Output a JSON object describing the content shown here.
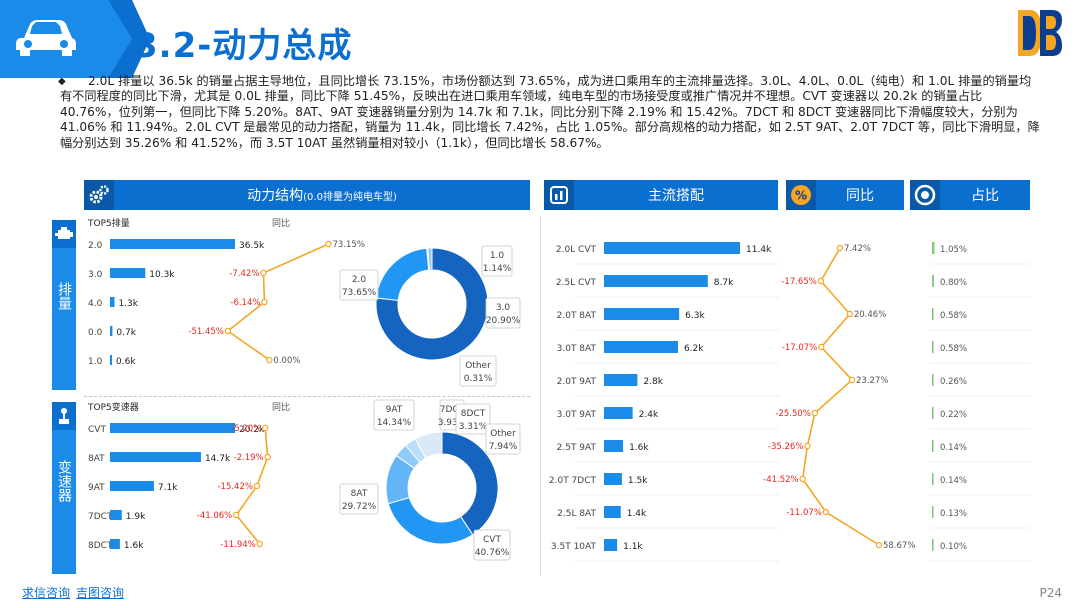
{
  "header": {
    "title": "3.2-动力总成"
  },
  "intro": {
    "text": "2.0L 排量以 36.5k 的销量占据主导地位，且同比增长 73.15%，市场份额达到 73.65%，成为进口乘用车的主流排量选择。3.0L、4.0L、0.0L（纯电）和 1.0L 排量的销量均有不同程度的同比下滑，尤其是 0.0L 排量，同比下降 51.45%，反映出在进口乘用车领域，纯电车型的市场接受度或推广情况并不理想。CVT 变速器以 20.2k 的销量占比 40.76%，位列第一，但同比下降 5.20%。8AT、9AT 变速器销量分别为 14.7k 和 7.1k，同比分别下降 2.19% 和 15.42%。7DCT 和 8DCT 变速器同比下滑幅度较大，分别为 41.06% 和 11.94%。2.0L CVT 是最常见的动力搭配，销量为 11.4k，同比增长 7.42%，占比 1.05%。部分高规格的动力搭配，如 2.5T 9AT、2.0T 7DCT 等，同比下滑明显，降幅分别达到 35.26% 和 41.52%，而 3.5T 10AT 虽然销量相对较小（1.1k），但同比增长 58.67%。",
    "bullet": "◆"
  },
  "sections": {
    "powertrain": {
      "title": "动力结构",
      "note": "(0.0排量为纯电车型)"
    },
    "combo": {
      "title": "主流搭配"
    },
    "yoy": {
      "title": "同比"
    },
    "share": {
      "title": "占比"
    }
  },
  "side_tags": {
    "displacement": "排量",
    "transmission": "变速器"
  },
  "chart_data": [
    {
      "id": "displacement",
      "type": "bar",
      "title": "TOP5排量",
      "yoy_label": "同比",
      "categories": [
        "2.0",
        "3.0",
        "4.0",
        "0.0",
        "1.0"
      ],
      "values": [
        36.5,
        10.3,
        1.3,
        0.7,
        0.6
      ],
      "value_labels": [
        "36.5k",
        "10.3k",
        "1.3k",
        "0.7k",
        "0.6k"
      ],
      "yoy": [
        73.15,
        -7.42,
        -6.14,
        -51.45,
        0.0
      ],
      "yoy_labels": [
        "73.15%",
        "-7.42%",
        "-6.14%",
        "-51.45%",
        "0.00%"
      ]
    },
    {
      "id": "displacement_share",
      "type": "pie",
      "slices": [
        {
          "label": "2.0",
          "value": 73.65,
          "value_label": "73.65%"
        },
        {
          "label": "3.0",
          "value": 20.9,
          "value_label": "20.90%"
        },
        {
          "label": "Other",
          "value": 0.31,
          "value_label": "0.31%"
        },
        {
          "label": "1.0",
          "value": 1.14,
          "value_label": "1.14%"
        }
      ]
    },
    {
      "id": "transmission",
      "type": "bar",
      "title": "TOP5变速器",
      "yoy_label": "同比",
      "categories": [
        "CVT",
        "8AT",
        "9AT",
        "7DCT",
        "8DCT"
      ],
      "values": [
        20.2,
        14.7,
        7.1,
        1.9,
        1.6
      ],
      "value_labels": [
        "20.2k",
        "14.7k",
        "7.1k",
        "1.9k",
        "1.6k"
      ],
      "yoy": [
        -5.2,
        -2.19,
        -15.42,
        -41.06,
        -11.94
      ],
      "yoy_labels": [
        "-5.20%",
        "-2.19%",
        "-15.42%",
        "-41.06%",
        "-11.94%"
      ]
    },
    {
      "id": "transmission_share",
      "type": "pie",
      "slices": [
        {
          "label": "CVT",
          "value": 40.76,
          "value_label": "40.76%"
        },
        {
          "label": "8AT",
          "value": 29.72,
          "value_label": "29.72%"
        },
        {
          "label": "9AT",
          "value": 14.34,
          "value_label": "14.34%"
        },
        {
          "label": "7DCT",
          "value": 3.93,
          "value_label": "3.93%"
        },
        {
          "label": "8DCT",
          "value": 3.31,
          "value_label": "3.31%"
        },
        {
          "label": "Other",
          "value": 7.94,
          "value_label": "7.94%"
        }
      ]
    },
    {
      "id": "combos",
      "type": "bar",
      "categories": [
        "2.0L CVT",
        "2.5L CVT",
        "2.0T 8AT",
        "3.0T 8AT",
        "2.0T 9AT",
        "3.0T 9AT",
        "2.5T 9AT",
        "2.0T 7DCT",
        "2.5L 8AT",
        "3.5T 10AT"
      ],
      "values": [
        11.4,
        8.7,
        6.3,
        6.2,
        2.8,
        2.4,
        1.6,
        1.5,
        1.4,
        1.1
      ],
      "value_labels": [
        "11.4k",
        "8.7k",
        "6.3k",
        "6.2k",
        "2.8k",
        "2.4k",
        "1.6k",
        "1.5k",
        "1.4k",
        "1.1k"
      ],
      "yoy": [
        7.42,
        -17.65,
        20.46,
        -17.07,
        23.27,
        -25.5,
        -35.26,
        -41.52,
        -11.07,
        58.67
      ],
      "yoy_labels": [
        "7.42%",
        "-17.65%",
        "20.46%",
        "-17.07%",
        "23.27%",
        "-25.50%",
        "-35.26%",
        "-41.52%",
        "-11.07%",
        "58.67%"
      ],
      "share": [
        1.05,
        0.8,
        0.58,
        0.58,
        0.26,
        0.22,
        0.14,
        0.14,
        0.13,
        0.1
      ],
      "share_labels": [
        "1.05%",
        "0.80%",
        "0.58%",
        "0.58%",
        "0.26%",
        "0.22%",
        "0.14%",
        "0.14%",
        "0.13%",
        "0.10%"
      ]
    }
  ],
  "colors": {
    "primary": "#0b6fcf",
    "bar": "#1a8be8",
    "line": "#f5a623",
    "negative": "#e8261c",
    "pie": [
      "#1565c0",
      "#2196f3",
      "#64b5f6",
      "#90caf9",
      "#bbdefb",
      "#dbe9f7"
    ]
  },
  "footer": {
    "link1": "求信咨询",
    "link2": "吉图咨询",
    "page": "P24"
  }
}
